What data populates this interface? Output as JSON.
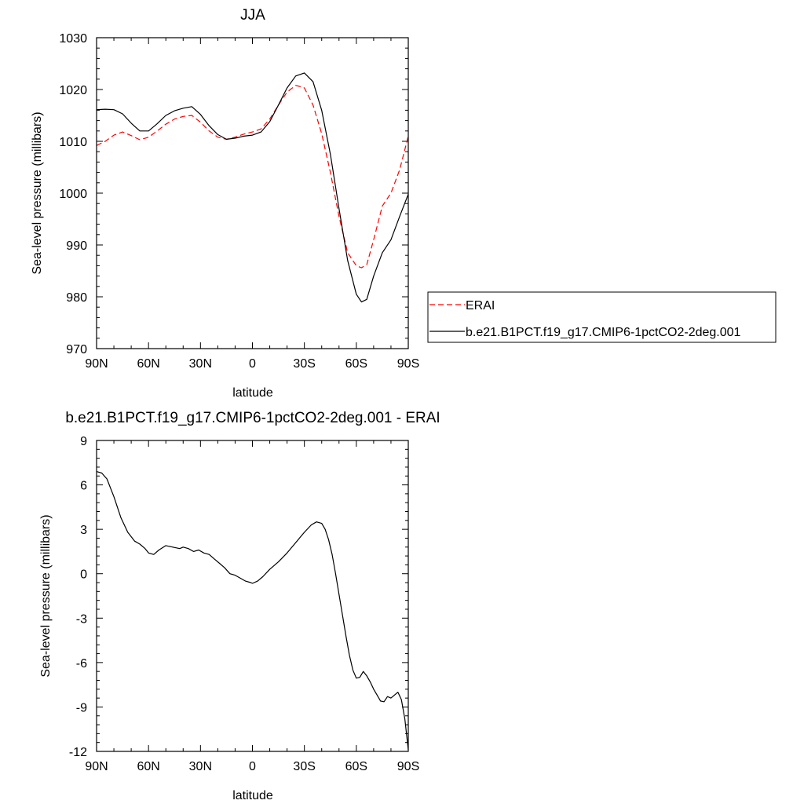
{
  "chart_data": [
    {
      "type": "line",
      "title": "JJA",
      "xlabel": "latitude",
      "ylabel": "Sea-level pressure (millibars)",
      "xlim": [
        90,
        -90
      ],
      "ylim": [
        970,
        1030
      ],
      "xticks": [
        90,
        60,
        30,
        0,
        -30,
        -60,
        -90
      ],
      "xtick_labels": [
        "90N",
        "60N",
        "30N",
        "0",
        "30S",
        "60S",
        "90S"
      ],
      "yticks": [
        970,
        980,
        990,
        1000,
        1010,
        1020,
        1030
      ],
      "ytick_labels": [
        "970",
        "980",
        "990",
        "1000",
        "1010",
        "1020",
        "1030"
      ],
      "grid": false,
      "legend_position": "right",
      "series": [
        {
          "name": "ERAI",
          "color": "#ff0000",
          "style": "dashed",
          "x": [
            90,
            85,
            80,
            75,
            70,
            65,
            60,
            55,
            50,
            45,
            40,
            35,
            30,
            25,
            20,
            15,
            10,
            5,
            0,
            -5,
            -10,
            -15,
            -20,
            -25,
            -30,
            -35,
            -40,
            -45,
            -50,
            -55,
            -60,
            -63,
            -66,
            -70,
            -75,
            -80,
            -85,
            -90
          ],
          "y": [
            1009.2,
            1010.0,
            1011.2,
            1011.8,
            1011.1,
            1010.3,
            1010.8,
            1012.0,
            1013.3,
            1014.3,
            1014.8,
            1015.0,
            1013.7,
            1012.0,
            1010.8,
            1010.4,
            1010.8,
            1011.4,
            1011.8,
            1012.4,
            1014.3,
            1017.0,
            1019.5,
            1020.8,
            1020.3,
            1017.0,
            1011.5,
            1004.0,
            995.5,
            988.5,
            986.0,
            985.6,
            986.2,
            991.0,
            997.5,
            1000.0,
            1004.5,
            1011.0
          ]
        },
        {
          "name": "b.e21.B1PCT.f19_g17.CMIP6-1pctCO2-2deg.001",
          "color": "#000000",
          "style": "solid",
          "x": [
            90,
            85,
            80,
            75,
            70,
            65,
            60,
            55,
            50,
            45,
            40,
            35,
            30,
            25,
            20,
            15,
            10,
            5,
            0,
            -5,
            -10,
            -15,
            -20,
            -25,
            -30,
            -35,
            -40,
            -45,
            -50,
            -55,
            -60,
            -63,
            -66,
            -70,
            -75,
            -80,
            -85,
            -90
          ],
          "y": [
            1016.1,
            1016.2,
            1016.1,
            1015.3,
            1013.5,
            1012.0,
            1012.0,
            1013.4,
            1015.0,
            1015.9,
            1016.4,
            1016.7,
            1015.2,
            1013.0,
            1011.3,
            1010.4,
            1010.6,
            1011.0,
            1011.2,
            1011.8,
            1013.8,
            1017.0,
            1020.3,
            1022.6,
            1023.2,
            1021.5,
            1016.0,
            1007.5,
            997.0,
            987.0,
            980.5,
            979.0,
            979.5,
            984.0,
            988.5,
            991.0,
            995.5,
            999.8
          ]
        }
      ]
    },
    {
      "type": "line",
      "title": "b.e21.B1PCT.f19_g17.CMIP6-1pctCO2-2deg.001 - ERAI",
      "xlabel": "latitude",
      "ylabel": "Sea-level pressure (millibars)",
      "xlim": [
        90,
        -90
      ],
      "ylim": [
        -12,
        9
      ],
      "xticks": [
        90,
        60,
        30,
        0,
        -30,
        -60,
        -90
      ],
      "xtick_labels": [
        "90N",
        "60N",
        "30N",
        "0",
        "30S",
        "60S",
        "90S"
      ],
      "yticks": [
        -12,
        -9,
        -6,
        -3,
        0,
        3,
        6,
        9
      ],
      "ytick_labels": [
        "-12",
        "-9",
        "-6",
        "-3",
        "0",
        "3",
        "6",
        "9"
      ],
      "grid": false,
      "series": [
        {
          "color": "#000000",
          "style": "solid",
          "x": [
            90,
            87,
            84,
            80,
            76,
            72,
            68,
            65,
            62,
            60,
            57,
            54,
            50,
            46,
            42,
            40,
            37,
            34,
            31,
            28,
            25,
            22,
            19,
            16,
            13,
            10,
            7,
            4,
            1,
            0,
            -3,
            -6,
            -10,
            -15,
            -20,
            -25,
            -30,
            -34,
            -37,
            -40,
            -42,
            -44,
            -46,
            -48,
            -50,
            -52,
            -54,
            -56,
            -58,
            -60,
            -62,
            -64,
            -66,
            -68,
            -70,
            -72,
            -74,
            -76,
            -78,
            -80,
            -82,
            -84,
            -86,
            -88,
            -90
          ],
          "y": [
            6.9,
            6.8,
            6.4,
            5.2,
            3.8,
            2.8,
            2.2,
            2.0,
            1.7,
            1.4,
            1.3,
            1.6,
            1.9,
            1.8,
            1.7,
            1.8,
            1.7,
            1.5,
            1.6,
            1.4,
            1.3,
            1.0,
            0.7,
            0.4,
            0.0,
            -0.1,
            -0.3,
            -0.5,
            -0.6,
            -0.65,
            -0.5,
            -0.2,
            0.3,
            0.8,
            1.4,
            2.1,
            2.8,
            3.3,
            3.5,
            3.4,
            3.0,
            2.3,
            1.3,
            0.0,
            -1.4,
            -2.8,
            -4.2,
            -5.5,
            -6.5,
            -7.05,
            -7.0,
            -6.6,
            -6.9,
            -7.3,
            -7.8,
            -8.2,
            -8.6,
            -8.65,
            -8.3,
            -8.4,
            -8.2,
            -8.0,
            -8.5,
            -9.8,
            -11.9
          ]
        }
      ]
    }
  ]
}
